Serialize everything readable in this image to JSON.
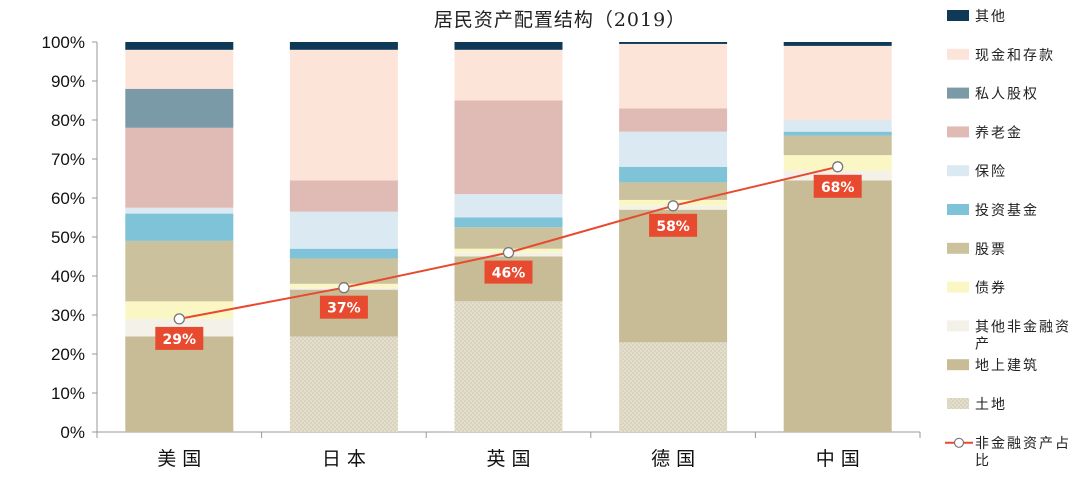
{
  "chart_data": {
    "type": "bar",
    "stacked": true,
    "title": "居民资产配置结构（2019）",
    "categories": [
      "美国",
      "日本",
      "英国",
      "德国",
      "中国"
    ],
    "ylim": [
      0,
      100
    ],
    "yticks": [
      "0%",
      "10%",
      "20%",
      "30%",
      "40%",
      "50%",
      "60%",
      "70%",
      "80%",
      "90%",
      "100%"
    ],
    "series": [
      {
        "name": "土地",
        "color": "#e2ddc9",
        "pattern": "dots",
        "values": [
          0,
          24.5,
          33.5,
          23,
          0
        ]
      },
      {
        "name": "地上建筑",
        "color": "#c7bc96",
        "values": [
          24.5,
          12,
          11.5,
          34,
          64.5
        ]
      },
      {
        "name": "其他非金融资产",
        "color": "#f3f1e8",
        "values": [
          4.5,
          0.5,
          1,
          1,
          2.5
        ]
      },
      {
        "name": "债券",
        "color": "#fbf7c4",
        "values": [
          4.5,
          1,
          1,
          1.5,
          4
        ]
      },
      {
        "name": "股票",
        "color": "#cbc29d",
        "values": [
          15.5,
          6.5,
          5.5,
          4.5,
          5
        ]
      },
      {
        "name": "投资基金",
        "color": "#7ec3d8",
        "values": [
          7,
          2.5,
          2.5,
          4,
          1
        ]
      },
      {
        "name": "保险",
        "color": "#dbe9f2",
        "values": [
          1.5,
          9.5,
          6,
          9,
          3
        ]
      },
      {
        "name": "养老金",
        "color": "#e0bbb6",
        "values": [
          20.5,
          8,
          24,
          6,
          0
        ]
      },
      {
        "name": "私人股权",
        "color": "#7a9aa7",
        "values": [
          10,
          0,
          0,
          0,
          0
        ]
      },
      {
        "name": "现金和存款",
        "color": "#fce5d8",
        "values": [
          10,
          33.5,
          13,
          16.5,
          19
        ]
      },
      {
        "name": "其他",
        "color": "#0f3a57",
        "values": [
          2,
          2,
          2,
          0.5,
          1
        ]
      }
    ],
    "line_series": {
      "name": "非金融资产占比",
      "color": "#e84a2f",
      "values": [
        29,
        37,
        46,
        58,
        68
      ],
      "labels": [
        "29%",
        "37%",
        "46%",
        "58%",
        "68%"
      ]
    },
    "legend_position": "right"
  }
}
